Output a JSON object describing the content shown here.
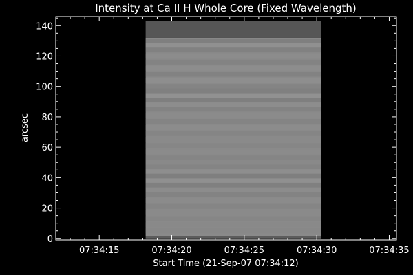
{
  "chart_data": {
    "type": "heatmap",
    "title": "Intensity at Ca II H Whole Core (Fixed Wavelength)",
    "xlabel": "Start Time (21-Sep-07 07:34:12)",
    "ylabel": "arcsec",
    "x_ticks": [
      {
        "seconds": 15,
        "label": "07:34:15"
      },
      {
        "seconds": 20,
        "label": "07:34:20"
      },
      {
        "seconds": 25,
        "label": "07:34:25"
      },
      {
        "seconds": 30,
        "label": "07:34:30"
      },
      {
        "seconds": 35,
        "label": "07:34:35"
      }
    ],
    "y_ticks": [
      0,
      20,
      40,
      60,
      80,
      100,
      120,
      140
    ],
    "xlim_seconds": [
      12,
      35.5
    ],
    "ylim": [
      -1,
      146
    ],
    "data_region": {
      "x_start_seconds": 18.2,
      "x_end_seconds": 30.3,
      "y_start": 0,
      "y_end": 143
    },
    "bands": [
      {
        "y0": 132,
        "y1": 143,
        "gray": 86
      },
      {
        "y0": 1.5,
        "y1": 132,
        "gray": 138
      },
      {
        "y0": 0,
        "y1": 1.5,
        "gray": 92
      }
    ],
    "stripes": [
      {
        "y": 130,
        "gray": 118
      },
      {
        "y": 127,
        "gray": 150
      },
      {
        "y": 124,
        "gray": 122
      },
      {
        "y": 120,
        "gray": 142
      },
      {
        "y": 116,
        "gray": 126
      },
      {
        "y": 112,
        "gray": 144
      },
      {
        "y": 108,
        "gray": 124
      },
      {
        "y": 104,
        "gray": 146
      },
      {
        "y": 100,
        "gray": 128
      },
      {
        "y": 97,
        "gray": 120
      },
      {
        "y": 94,
        "gray": 152
      },
      {
        "y": 91,
        "gray": 118
      },
      {
        "y": 88,
        "gray": 144
      },
      {
        "y": 85,
        "gray": 126
      },
      {
        "y": 81,
        "gray": 140
      },
      {
        "y": 77,
        "gray": 128
      },
      {
        "y": 73,
        "gray": 142
      },
      {
        "y": 69,
        "gray": 130
      },
      {
        "y": 65,
        "gray": 138
      },
      {
        "y": 61,
        "gray": 132
      },
      {
        "y": 57,
        "gray": 140
      },
      {
        "y": 53,
        "gray": 130
      },
      {
        "y": 50,
        "gray": 136
      },
      {
        "y": 47,
        "gray": 128
      },
      {
        "y": 44,
        "gray": 146
      },
      {
        "y": 41,
        "gray": 118
      },
      {
        "y": 38,
        "gray": 150
      },
      {
        "y": 35,
        "gray": 120
      },
      {
        "y": 32,
        "gray": 142
      },
      {
        "y": 29,
        "gray": 126
      },
      {
        "y": 25,
        "gray": 140
      },
      {
        "y": 21,
        "gray": 130
      },
      {
        "y": 17,
        "gray": 138
      },
      {
        "y": 13,
        "gray": 132
      },
      {
        "y": 9,
        "gray": 136
      },
      {
        "y": 5,
        "gray": 134
      }
    ]
  }
}
